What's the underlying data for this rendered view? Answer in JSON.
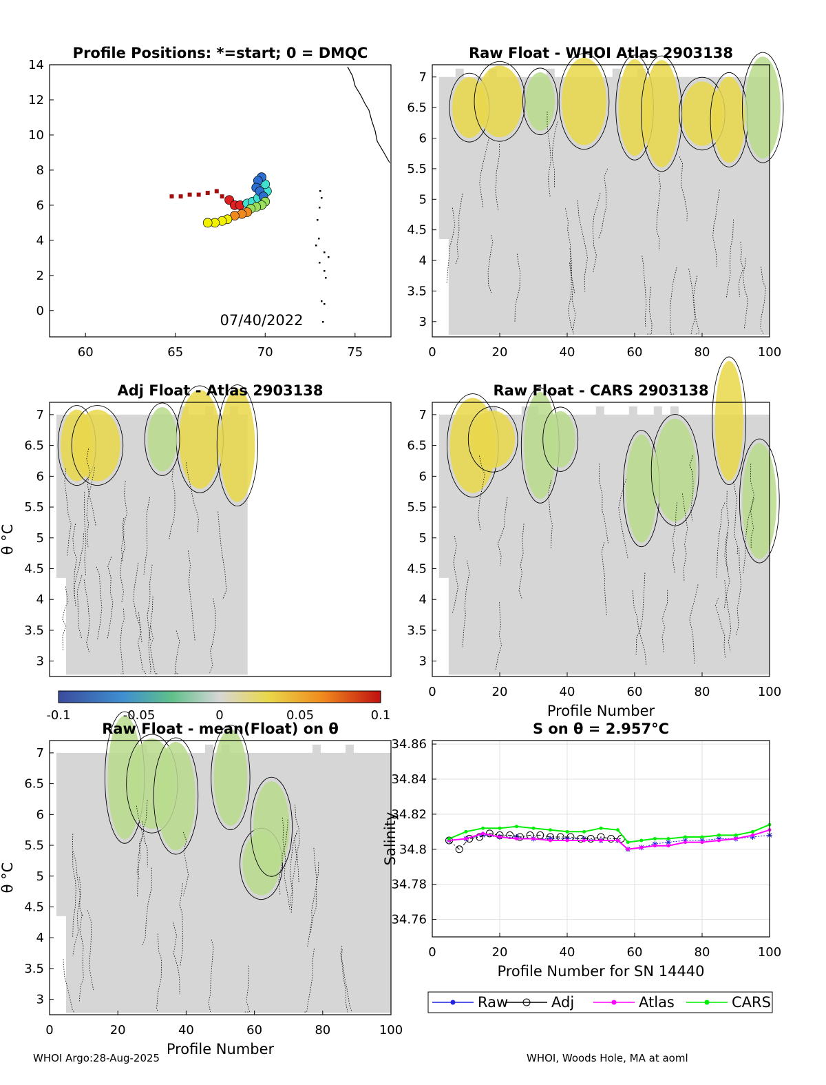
{
  "footer": {
    "left": "WHOI Argo:28-Aug-2025",
    "right": "WHOI, Woods Hole, MA at aoml"
  },
  "colors": {
    "section_fill": "#d6d6d6",
    "positive": "#e9d84a",
    "negative": "#b9dc8c",
    "raw": "#2020e0",
    "adj": "#000000",
    "atlas": "#ff00ff",
    "cars": "#00ee00"
  },
  "chart_data": [
    {
      "type": "scatter",
      "title": "Profile Positions: *=start; 0 = DMQC",
      "xlabel": "",
      "ylabel": "",
      "xlim": [
        58,
        77
      ],
      "ylim": [
        -1.5,
        14
      ],
      "xticks": [
        "60",
        "65",
        "70",
        "75"
      ],
      "yticks": [
        "14",
        "12",
        "10",
        "8",
        "6",
        "4",
        "2",
        "0"
      ],
      "date_label": "07/40/2022",
      "track": [
        [
          64.8,
          6.5
        ],
        [
          65.3,
          6.5
        ],
        [
          65.8,
          6.6
        ],
        [
          66.3,
          6.6
        ],
        [
          66.8,
          6.7
        ],
        [
          67.3,
          6.8
        ],
        [
          67.6,
          6.5
        ],
        [
          68.0,
          6.3
        ],
        [
          68.3,
          6.0
        ],
        [
          68.6,
          6.0
        ],
        [
          69.0,
          6.1
        ],
        [
          69.3,
          6.2
        ],
        [
          69.6,
          6.4
        ],
        [
          69.9,
          6.6
        ],
        [
          70.1,
          6.8
        ],
        [
          70.0,
          7.2
        ],
        [
          69.8,
          7.6
        ],
        [
          69.6,
          7.4
        ],
        [
          69.5,
          7.0
        ],
        [
          69.7,
          6.8
        ],
        [
          69.9,
          6.5
        ],
        [
          70.0,
          6.2
        ],
        [
          69.8,
          6.0
        ],
        [
          69.5,
          5.9
        ],
        [
          69.2,
          5.8
        ],
        [
          69.0,
          5.6
        ],
        [
          68.7,
          5.5
        ],
        [
          68.3,
          5.4
        ],
        [
          67.9,
          5.2
        ],
        [
          67.6,
          5.1
        ],
        [
          67.2,
          5.0
        ],
        [
          66.8,
          5.0
        ]
      ],
      "grid": false
    },
    {
      "type": "heatmap",
      "title": "Raw Float - WHOI Atlas  2903138",
      "xlim": [
        0,
        100
      ],
      "ylim": [
        2.75,
        7.2
      ],
      "xticks": [
        "0",
        "20",
        "40",
        "60",
        "80",
        "100"
      ],
      "yticks": [
        "7",
        "6.5",
        "6",
        "5.5",
        "5",
        "4.5",
        "4",
        "3.5",
        "3"
      ],
      "profiles": [
        2,
        100
      ],
      "warm_patches": [
        [
          11,
          6.5
        ],
        [
          20,
          6.6
        ],
        [
          45,
          6.6
        ],
        [
          60,
          6.5
        ],
        [
          68,
          6.4
        ],
        [
          80,
          6.4
        ],
        [
          88,
          6.3
        ]
      ],
      "cool_patches": [
        [
          32,
          6.6
        ],
        [
          98,
          6.5
        ]
      ]
    },
    {
      "type": "heatmap",
      "title": "Adj Float - Atlas  2903138",
      "ylabel": "θ °C",
      "xlim": [
        0,
        100
      ],
      "ylim": [
        2.75,
        7.2
      ],
      "xticks": [],
      "yticks": [
        "7",
        "6.5",
        "6",
        "5.5",
        "5",
        "4.5",
        "4",
        "3.5",
        "3"
      ],
      "profiles": [
        2,
        58
      ],
      "warm_patches": [
        [
          8,
          6.5
        ],
        [
          14,
          6.5
        ],
        [
          44,
          6.6
        ],
        [
          55,
          6.5
        ]
      ],
      "cool_patches": [
        [
          33,
          6.6
        ]
      ]
    },
    {
      "type": "heatmap",
      "title": "Raw Float - CARS  2903138",
      "xlabel": "Profile Number",
      "xlim": [
        0,
        100
      ],
      "ylim": [
        2.75,
        7.2
      ],
      "xticks": [
        "0",
        "20",
        "40",
        "60",
        "80",
        "100"
      ],
      "yticks": [
        "7",
        "6.5",
        "6",
        "5.5",
        "5",
        "4.5",
        "4",
        "3.5",
        "3"
      ],
      "profiles": [
        2,
        100
      ],
      "warm_patches": [
        [
          12,
          6.5
        ],
        [
          18,
          6.6
        ],
        [
          88,
          6.9
        ]
      ],
      "cool_patches": [
        [
          32,
          6.5
        ],
        [
          38,
          6.6
        ],
        [
          62,
          5.8
        ],
        [
          72,
          6.1
        ],
        [
          97,
          5.6
        ]
      ]
    },
    {
      "type": "colorbar",
      "min": -0.1,
      "max": 0.1,
      "ticks": [
        "-0.1",
        "-0.05",
        "0",
        "0.05",
        "0.1"
      ]
    },
    {
      "type": "heatmap",
      "title": "Raw Float - mean(Float) on θ",
      "xlabel": "Profile Number",
      "ylabel": "θ °C",
      "xlim": [
        0,
        100
      ],
      "ylim": [
        2.75,
        7.2
      ],
      "xticks": [
        "0",
        "20",
        "40",
        "60",
        "80",
        "100"
      ],
      "yticks": [
        "7",
        "6.5",
        "6",
        "5.5",
        "5",
        "4.5",
        "4",
        "3.5",
        "3"
      ],
      "profiles": [
        2,
        100
      ],
      "warm_patches": [],
      "cool_patches": [
        [
          22,
          6.6
        ],
        [
          30,
          6.5
        ],
        [
          37,
          6.3
        ],
        [
          53,
          6.6
        ],
        [
          62,
          5.2
        ],
        [
          65,
          5.8
        ]
      ]
    },
    {
      "type": "line",
      "title": "S on θ = 2.957°C",
      "xlabel": "Profile Number for SN 14440",
      "ylabel": "Salinity",
      "xlim": [
        0,
        100
      ],
      "ylim": [
        34.75,
        34.862
      ],
      "xticks": [
        "0",
        "20",
        "40",
        "60",
        "80",
        "100"
      ],
      "yticks": [
        "34.86",
        "34.84",
        "34.82",
        "34.8",
        "34.78",
        "34.76"
      ],
      "grid": true,
      "legend": [
        "Raw",
        "Adj",
        "Atlas",
        "CARS"
      ],
      "series": [
        {
          "name": "Raw",
          "x": [
            5,
            10,
            15,
            20,
            25,
            30,
            35,
            40,
            45,
            50,
            55,
            58,
            62,
            66,
            70,
            75,
            80,
            85,
            90,
            95,
            100
          ],
          "values": [
            34.805,
            34.806,
            34.808,
            34.807,
            34.807,
            34.806,
            34.806,
            34.806,
            34.806,
            34.805,
            34.805,
            34.8,
            34.801,
            34.803,
            34.804,
            34.805,
            34.805,
            34.806,
            34.806,
            34.807,
            34.808
          ]
        },
        {
          "name": "Adj",
          "x": [
            5,
            8,
            11,
            14,
            17,
            20,
            23,
            26,
            29,
            32,
            35,
            38,
            41,
            44,
            47,
            50,
            53,
            56
          ],
          "values": [
            34.805,
            34.8,
            34.806,
            34.807,
            34.809,
            34.808,
            34.808,
            34.807,
            34.808,
            34.808,
            34.807,
            34.807,
            34.807,
            34.806,
            34.806,
            34.807,
            34.806,
            34.806
          ]
        },
        {
          "name": "Atlas",
          "x": [
            5,
            10,
            15,
            20,
            25,
            30,
            35,
            40,
            45,
            50,
            55,
            58,
            62,
            66,
            70,
            75,
            80,
            85,
            90,
            95,
            100
          ],
          "values": [
            34.805,
            34.806,
            34.809,
            34.807,
            34.806,
            34.806,
            34.805,
            34.805,
            34.805,
            34.805,
            34.805,
            34.8,
            34.801,
            34.802,
            34.802,
            34.804,
            34.804,
            34.805,
            34.806,
            34.808,
            34.811
          ]
        },
        {
          "name": "CARS",
          "x": [
            5,
            10,
            15,
            20,
            25,
            30,
            35,
            40,
            45,
            50,
            55,
            58,
            62,
            66,
            70,
            75,
            80,
            85,
            90,
            95,
            100
          ],
          "values": [
            34.806,
            34.81,
            34.812,
            34.812,
            34.813,
            34.812,
            34.811,
            34.81,
            34.81,
            34.812,
            34.811,
            34.804,
            34.805,
            34.806,
            34.806,
            34.807,
            34.807,
            34.808,
            34.808,
            34.81,
            34.814
          ]
        }
      ]
    }
  ]
}
